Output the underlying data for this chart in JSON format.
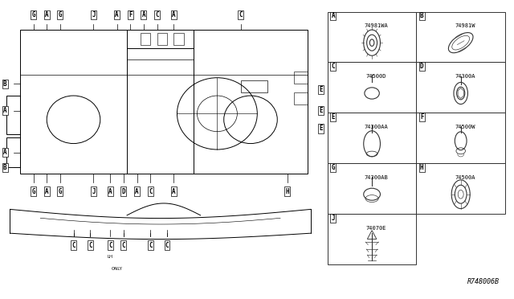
{
  "bg_color": "#ffffff",
  "line_color": "#000000",
  "label_color": "#000000",
  "fig_width": 6.4,
  "fig_height": 3.72,
  "dpi": 100,
  "part_code": "R748006B",
  "parts": [
    {
      "id": "A",
      "code": "74981WA",
      "row": 0,
      "col": 0
    },
    {
      "id": "B",
      "code": "74981W",
      "row": 0,
      "col": 1
    },
    {
      "id": "C",
      "code": "74500D",
      "row": 1,
      "col": 0
    },
    {
      "id": "D",
      "code": "74300A",
      "row": 1,
      "col": 1
    },
    {
      "id": "E",
      "code": "74300AA",
      "row": 2,
      "col": 0
    },
    {
      "id": "F",
      "code": "74500W",
      "row": 2,
      "col": 1
    },
    {
      "id": "G",
      "code": "74300AB",
      "row": 3,
      "col": 0
    },
    {
      "id": "H",
      "code": "74500A",
      "row": 3,
      "col": 1
    },
    {
      "id": "J",
      "code": "74070E",
      "row": 4,
      "col": 0
    }
  ]
}
